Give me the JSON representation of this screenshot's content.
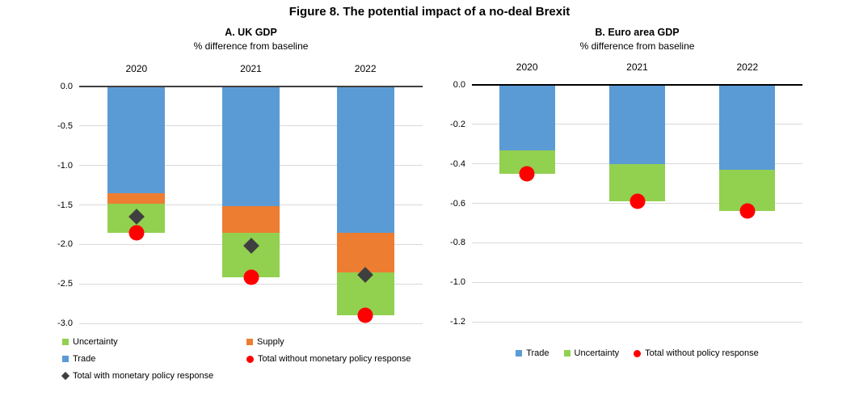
{
  "figure": {
    "title": "Figure 8. The potential impact of a no-deal Brexit"
  },
  "colors": {
    "trade": "#5B9BD5",
    "supply": "#ED7D31",
    "uncertainty": "#92D050",
    "total_without": "#FF0000",
    "total_with": "#3F3F3F",
    "gridline": "#D9D9D9",
    "zero_line_panel_a": "#404040",
    "zero_line_panel_b": "#000000"
  },
  "chart_data": [
    {
      "type": "bar",
      "stacking": "stacked",
      "title": "A. UK GDP",
      "subtitle": "% difference from baseline",
      "categories": [
        "2020",
        "2021",
        "2022"
      ],
      "series": [
        {
          "name": "Trade",
          "color": "#5B9BD5",
          "values": [
            -1.35,
            -1.52,
            -1.85
          ]
        },
        {
          "name": "Supply",
          "color": "#ED7D31",
          "values": [
            -0.13,
            -0.33,
            -0.51
          ]
        },
        {
          "name": "Uncertainty",
          "color": "#92D050",
          "values": [
            -0.37,
            -0.57,
            -0.54
          ]
        }
      ],
      "markers": [
        {
          "name": "Total with monetary policy response",
          "shape": "diamond",
          "color": "#3F3F3F",
          "values": [
            -1.65,
            -2.02,
            -2.39
          ]
        },
        {
          "name": "Total without monetary policy response",
          "shape": "circle",
          "color": "#FF0000",
          "values": [
            -1.85,
            -2.42,
            -2.9
          ]
        }
      ],
      "xlabel": "",
      "ylabel": "",
      "ylim": [
        -3.0,
        0.0
      ],
      "ytick_step": 0.5,
      "yticks": [
        "0.0",
        "-0.5",
        "-1.0",
        "-1.5",
        "-2.0",
        "-2.5",
        "-3.0"
      ],
      "grid": "horizontal",
      "legend": {
        "position": "bottom-left-two-columns",
        "items": [
          {
            "label": "Uncertainty",
            "marker": "square",
            "color": "#92D050",
            "col": 0,
            "row": 0
          },
          {
            "label": "Supply",
            "marker": "square",
            "color": "#ED7D31",
            "col": 1,
            "row": 0
          },
          {
            "label": "Trade",
            "marker": "square",
            "color": "#5B9BD5",
            "col": 0,
            "row": 1
          },
          {
            "label": "Total without monetary policy response",
            "marker": "circle",
            "color": "#FF0000",
            "col": 1,
            "row": 1
          },
          {
            "label": "Total with monetary policy response",
            "marker": "diamond",
            "color": "#3F3F3F",
            "col": 0,
            "row": 2
          }
        ]
      }
    },
    {
      "type": "bar",
      "stacking": "stacked",
      "title": "B. Euro area GDP",
      "subtitle": "% difference from baseline",
      "categories": [
        "2020",
        "2021",
        "2022"
      ],
      "series": [
        {
          "name": "Trade",
          "color": "#5B9BD5",
          "values": [
            -0.33,
            -0.4,
            -0.43
          ]
        },
        {
          "name": "Uncertainty",
          "color": "#92D050",
          "values": [
            -0.12,
            -0.19,
            -0.21
          ]
        }
      ],
      "markers": [
        {
          "name": "Total without policy response",
          "shape": "circle",
          "color": "#FF0000",
          "values": [
            -0.45,
            -0.59,
            -0.64
          ]
        }
      ],
      "xlabel": "",
      "ylabel": "",
      "ylim": [
        -1.2,
        0.0
      ],
      "ytick_step": 0.2,
      "yticks": [
        "0.0",
        "-0.2",
        "-0.4",
        "-0.6",
        "-0.8",
        "-1.0",
        "-1.2"
      ],
      "grid": "horizontal",
      "legend": {
        "position": "bottom-center-row",
        "items": [
          {
            "label": "Trade",
            "marker": "square",
            "color": "#5B9BD5"
          },
          {
            "label": "Uncertainty",
            "marker": "square",
            "color": "#92D050"
          },
          {
            "label": "Total without policy response",
            "marker": "circle",
            "color": "#FF0000"
          }
        ]
      }
    }
  ]
}
